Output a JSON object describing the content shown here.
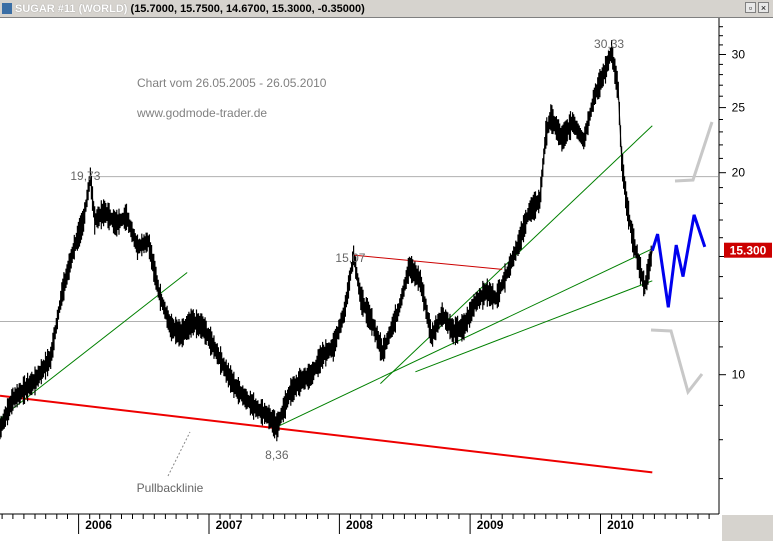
{
  "window": {
    "symbol": "SUGAR #11 (WORLD)",
    "quote": "(15.7000, 15.7500, 14.6700, 15.3000, -0.35000)",
    "icons": [
      "window-restore-icon",
      "window-close-icon"
    ]
  },
  "chart_data": {
    "type": "line",
    "annotations": [
      "Chart vom 26.05.2005 - 26.05.2010",
      "www.godmode-trader.de"
    ],
    "price_labels": {
      "high_2006": "19,73",
      "high_2008": "15,07",
      "high_2010": "30,33",
      "low_2007": "8,36",
      "pullback": "Pullbacklinie"
    },
    "last_price": "15.300",
    "x_ticks": [
      "2006",
      "2007",
      "2008",
      "2009",
      "2010"
    ],
    "y_ticks": [
      "30",
      "25",
      "20",
      "10"
    ],
    "y_scale": "log",
    "colors": {
      "price": "#000000",
      "trend": "#008000",
      "resistance": "#cc0000",
      "main_support": "#ee0000",
      "projection": "#0000ee",
      "alt_path": "#c8c8c8",
      "last_price_bg": "#cc0000"
    },
    "series": {
      "price": [
        [
          "2005-05-26",
          8.3
        ],
        [
          "2005-07-01",
          9.2
        ],
        [
          "2005-09-01",
          9.8
        ],
        [
          "2005-10-15",
          10.6
        ],
        [
          "2005-11-15",
          13.2
        ],
        [
          "2005-12-20",
          15.5
        ],
        [
          "2006-01-15",
          17.0
        ],
        [
          "2006-02-03",
          19.73
        ],
        [
          "2006-02-15",
          17.0
        ],
        [
          "2006-03-15",
          17.5
        ],
        [
          "2006-04-15",
          16.8
        ],
        [
          "2006-05-15",
          17.2
        ],
        [
          "2006-06-15",
          15.5
        ],
        [
          "2006-07-15",
          15.8
        ],
        [
          "2006-08-15",
          13.2
        ],
        [
          "2006-09-15",
          11.8
        ],
        [
          "2006-10-15",
          11.5
        ],
        [
          "2006-11-15",
          12.0
        ],
        [
          "2006-12-15",
          11.8
        ],
        [
          "2007-01-15",
          11.0
        ],
        [
          "2007-02-15",
          10.2
        ],
        [
          "2007-03-15",
          9.6
        ],
        [
          "2007-04-15",
          9.2
        ],
        [
          "2007-05-15",
          8.9
        ],
        [
          "2007-06-15",
          8.7
        ],
        [
          "2007-07-10",
          8.36
        ],
        [
          "2007-08-15",
          9.4
        ],
        [
          "2007-09-15",
          9.8
        ],
        [
          "2007-10-15",
          10.0
        ],
        [
          "2007-11-15",
          10.7
        ],
        [
          "2007-12-15",
          11.0
        ],
        [
          "2008-01-15",
          12.4
        ],
        [
          "2008-02-10",
          15.07
        ],
        [
          "2008-03-01",
          13.0
        ],
        [
          "2008-04-01",
          12.0
        ],
        [
          "2008-05-01",
          10.8
        ],
        [
          "2008-06-15",
          12.5
        ],
        [
          "2008-07-15",
          14.5
        ],
        [
          "2008-08-15",
          13.8
        ],
        [
          "2008-09-15",
          11.4
        ],
        [
          "2008-10-15",
          12.3
        ],
        [
          "2008-11-15",
          11.6
        ],
        [
          "2008-12-15",
          11.8
        ],
        [
          "2009-01-15",
          12.8
        ],
        [
          "2009-02-15",
          13.3
        ],
        [
          "2009-03-15",
          13.0
        ],
        [
          "2009-04-15",
          14.2
        ],
        [
          "2009-05-15",
          15.6
        ],
        [
          "2009-06-15",
          17.5
        ],
        [
          "2009-07-15",
          18.2
        ],
        [
          "2009-08-01",
          22.8
        ],
        [
          "2009-08-15",
          24.2
        ],
        [
          "2009-09-15",
          22.5
        ],
        [
          "2009-10-15",
          23.8
        ],
        [
          "2009-11-15",
          22.3
        ],
        [
          "2009-12-15",
          26.0
        ],
        [
          "2010-01-15",
          28.5
        ],
        [
          "2010-02-01",
          30.33
        ],
        [
          "2010-02-20",
          26.5
        ],
        [
          "2010-03-01",
          21.0
        ],
        [
          "2010-03-15",
          18.0
        ],
        [
          "2010-04-01",
          16.0
        ],
        [
          "2010-04-20",
          14.5
        ],
        [
          "2010-05-05",
          13.5
        ],
        [
          "2010-05-26",
          15.3
        ]
      ],
      "trend_lines": [
        [
          [
            "2005-05-26",
            8.6
          ],
          [
            "2006-11-01",
            14.2
          ]
        ],
        [
          [
            "2007-07-10",
            8.36
          ],
          [
            "2010-05-26",
            15.4
          ]
        ],
        [
          [
            "2008-04-25",
            9.7
          ],
          [
            "2010-05-26",
            23.5
          ]
        ],
        [
          [
            "2008-08-01",
            10.1
          ],
          [
            "2010-05-26",
            13.8
          ]
        ]
      ],
      "resistance_line": [
        [
          "2008-02-10",
          15.07
        ],
        [
          "2009-04-01",
          14.35
        ]
      ],
      "main_support_line": [
        [
          "2005-05-26",
          9.3
        ],
        [
          "2010-05-26",
          7.15
        ]
      ],
      "projection_path": [
        [
          "2010-05-26",
          15.3
        ],
        [
          "2010-06-10",
          16.2
        ],
        [
          "2010-07-10",
          12.6
        ],
        [
          "2010-08-01",
          15.6
        ],
        [
          "2010-08-20",
          14.0
        ],
        [
          "2010-09-20",
          17.3
        ],
        [
          "2010-10-20",
          15.5
        ]
      ]
    }
  }
}
